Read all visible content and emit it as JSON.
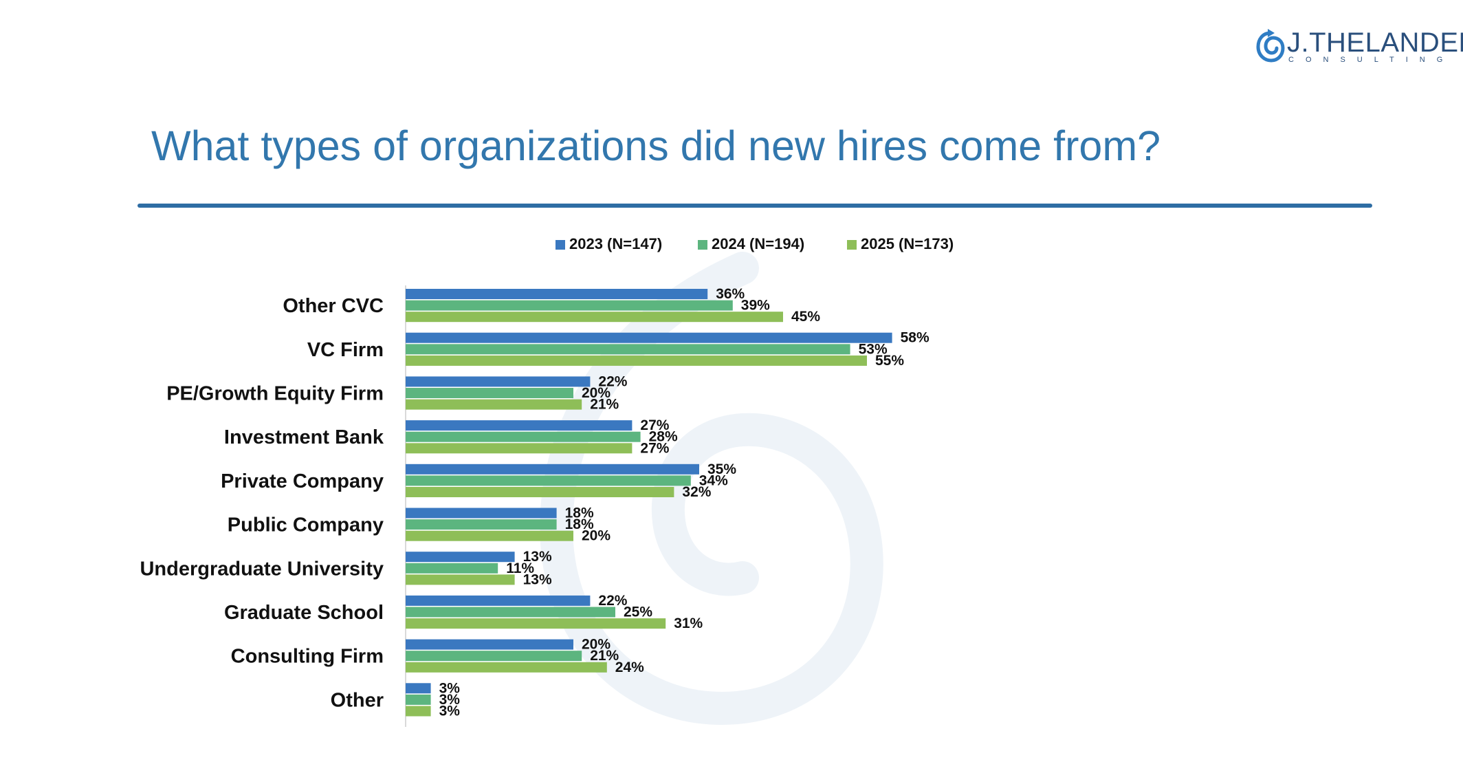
{
  "brand": {
    "name": "J.THELANDER",
    "sub": "CONSULTING"
  },
  "title": "What types of organizations did new hires come from?",
  "chart_data": {
    "type": "bar",
    "orientation": "horizontal",
    "title": "What types of organizations did new hires come from?",
    "categories": [
      "Other CVC",
      "VC Firm",
      "PE/Growth Equity Firm",
      "Investment Bank",
      "Private Company",
      "Public Company",
      "Undergraduate University",
      "Graduate School",
      "Consulting Firm",
      "Other"
    ],
    "series": [
      {
        "name": "2023 (N=147)",
        "color": "#3a78c0",
        "values": [
          36,
          58,
          22,
          27,
          35,
          18,
          13,
          22,
          20,
          3
        ]
      },
      {
        "name": "2024 (N=194)",
        "color": "#5cb57f",
        "values": [
          39,
          53,
          20,
          28,
          34,
          18,
          11,
          25,
          21,
          3
        ]
      },
      {
        "name": "2025 (N=173)",
        "color": "#8ebe58",
        "values": [
          45,
          55,
          21,
          27,
          32,
          20,
          13,
          31,
          24,
          3
        ]
      }
    ],
    "value_format": "percent",
    "xlim": [
      0,
      70
    ],
    "legend_position": "top",
    "grid": false
  }
}
